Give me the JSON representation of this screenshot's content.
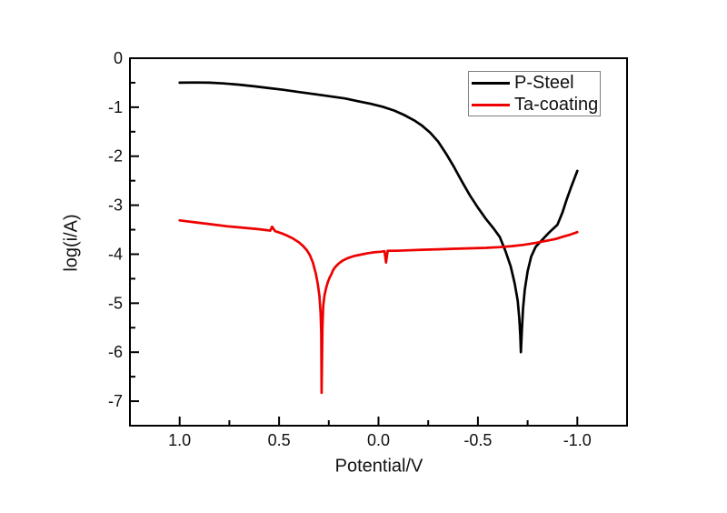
{
  "colors": {
    "background": "#ffffff",
    "frame": "#000000",
    "tick": "#000000",
    "text": "#111111",
    "legend_border": "#7f7f7f",
    "p_steel": "#000000",
    "ta_coating": "#ee0000"
  },
  "chart_data": {
    "type": "line",
    "title": "",
    "xlabel": "Potential/V",
    "ylabel": "log(i/A)",
    "grid": false,
    "x_axis": {
      "left_value": 1.25,
      "right_value": -1.25,
      "reversed": true,
      "major_ticks": [
        1.0,
        0.5,
        0.0,
        -0.5,
        -1.0
      ],
      "tick_labels": [
        "1.0",
        "0.5",
        "0.0",
        "-0.5",
        "-1.0"
      ],
      "minor_ticks": [
        0.75,
        0.25,
        -0.25,
        -0.75
      ]
    },
    "y_axis": {
      "top_value": 0,
      "bottom_value": -7.5,
      "major_ticks": [
        0,
        -1,
        -2,
        -3,
        -4,
        -5,
        -6,
        -7
      ],
      "tick_labels": [
        "0",
        "-1",
        "-2",
        "-3",
        "-4",
        "-5",
        "-6",
        "-7"
      ],
      "minor_ticks": [
        -0.5,
        -1.5,
        -2.5,
        -3.5,
        -4.5,
        -5.5,
        -6.5
      ]
    },
    "legend": {
      "position": "top-right",
      "entries": [
        "P-Steel",
        "Ta-coating"
      ]
    },
    "series": [
      {
        "name": "P-Steel",
        "color": "#000000",
        "points": [
          [
            1.0,
            -0.5
          ],
          [
            0.92,
            -0.495
          ],
          [
            0.85,
            -0.5
          ],
          [
            0.78,
            -0.515
          ],
          [
            0.7,
            -0.54
          ],
          [
            0.62,
            -0.575
          ],
          [
            0.55,
            -0.61
          ],
          [
            0.48,
            -0.645
          ],
          [
            0.4,
            -0.69
          ],
          [
            0.32,
            -0.735
          ],
          [
            0.25,
            -0.775
          ],
          [
            0.17,
            -0.82
          ],
          [
            0.1,
            -0.88
          ],
          [
            0.04,
            -0.93
          ],
          [
            -0.02,
            -0.99
          ],
          [
            -0.08,
            -1.07
          ],
          [
            -0.13,
            -1.16
          ],
          [
            -0.18,
            -1.27
          ],
          [
            -0.22,
            -1.38
          ],
          [
            -0.26,
            -1.52
          ],
          [
            -0.3,
            -1.7
          ],
          [
            -0.34,
            -1.95
          ],
          [
            -0.38,
            -2.22
          ],
          [
            -0.42,
            -2.52
          ],
          [
            -0.46,
            -2.8
          ],
          [
            -0.5,
            -3.05
          ],
          [
            -0.54,
            -3.28
          ],
          [
            -0.58,
            -3.48
          ],
          [
            -0.61,
            -3.65
          ],
          [
            -0.64,
            -3.95
          ],
          [
            -0.665,
            -4.25
          ],
          [
            -0.685,
            -4.6
          ],
          [
            -0.7,
            -4.95
          ],
          [
            -0.708,
            -5.3
          ],
          [
            -0.713,
            -5.65
          ],
          [
            -0.716,
            -6.0
          ],
          [
            -0.721,
            -5.55
          ],
          [
            -0.727,
            -5.1
          ],
          [
            -0.736,
            -4.72
          ],
          [
            -0.75,
            -4.35
          ],
          [
            -0.768,
            -4.05
          ],
          [
            -0.79,
            -3.85
          ],
          [
            -0.825,
            -3.7
          ],
          [
            -0.86,
            -3.55
          ],
          [
            -0.9,
            -3.4
          ],
          [
            -0.925,
            -3.15
          ],
          [
            -0.945,
            -2.9
          ],
          [
            -0.97,
            -2.62
          ],
          [
            -1.0,
            -2.3
          ]
        ]
      },
      {
        "name": "Ta-coating",
        "color": "#ee0000",
        "points": [
          [
            1.0,
            -3.31
          ],
          [
            0.92,
            -3.35
          ],
          [
            0.84,
            -3.39
          ],
          [
            0.76,
            -3.43
          ],
          [
            0.68,
            -3.46
          ],
          [
            0.6,
            -3.49
          ],
          [
            0.56,
            -3.51
          ],
          [
            0.545,
            -3.52
          ],
          [
            0.535,
            -3.44
          ],
          [
            0.52,
            -3.53
          ],
          [
            0.49,
            -3.57
          ],
          [
            0.46,
            -3.62
          ],
          [
            0.43,
            -3.68
          ],
          [
            0.4,
            -3.76
          ],
          [
            0.38,
            -3.83
          ],
          [
            0.36,
            -3.92
          ],
          [
            0.345,
            -4.02
          ],
          [
            0.33,
            -4.17
          ],
          [
            0.315,
            -4.4
          ],
          [
            0.305,
            -4.62
          ],
          [
            0.297,
            -4.85
          ],
          [
            0.291,
            -5.2
          ],
          [
            0.288,
            -5.6
          ],
          [
            0.286,
            -6.83
          ],
          [
            0.282,
            -5.5
          ],
          [
            0.278,
            -5.05
          ],
          [
            0.272,
            -4.85
          ],
          [
            0.264,
            -4.7
          ],
          [
            0.255,
            -4.57
          ],
          [
            0.246,
            -4.48
          ],
          [
            0.237,
            -4.41
          ],
          [
            0.229,
            -4.33
          ],
          [
            0.217,
            -4.26
          ],
          [
            0.2,
            -4.19
          ],
          [
            0.18,
            -4.13
          ],
          [
            0.155,
            -4.08
          ],
          [
            0.125,
            -4.04
          ],
          [
            0.09,
            -4.01
          ],
          [
            0.055,
            -3.98
          ],
          [
            0.02,
            -3.96
          ],
          [
            -0.01,
            -3.95
          ],
          [
            -0.03,
            -3.94
          ],
          [
            -0.038,
            -4.17
          ],
          [
            -0.046,
            -3.93
          ],
          [
            -0.09,
            -3.93
          ],
          [
            -0.15,
            -3.92
          ],
          [
            -0.22,
            -3.91
          ],
          [
            -0.3,
            -3.9
          ],
          [
            -0.38,
            -3.89
          ],
          [
            -0.46,
            -3.88
          ],
          [
            -0.54,
            -3.87
          ],
          [
            -0.61,
            -3.855
          ],
          [
            -0.67,
            -3.835
          ],
          [
            -0.73,
            -3.81
          ],
          [
            -0.79,
            -3.77
          ],
          [
            -0.84,
            -3.73
          ],
          [
            -0.89,
            -3.69
          ],
          [
            -0.93,
            -3.64
          ],
          [
            -0.965,
            -3.6
          ],
          [
            -1.0,
            -3.55
          ]
        ]
      }
    ]
  }
}
